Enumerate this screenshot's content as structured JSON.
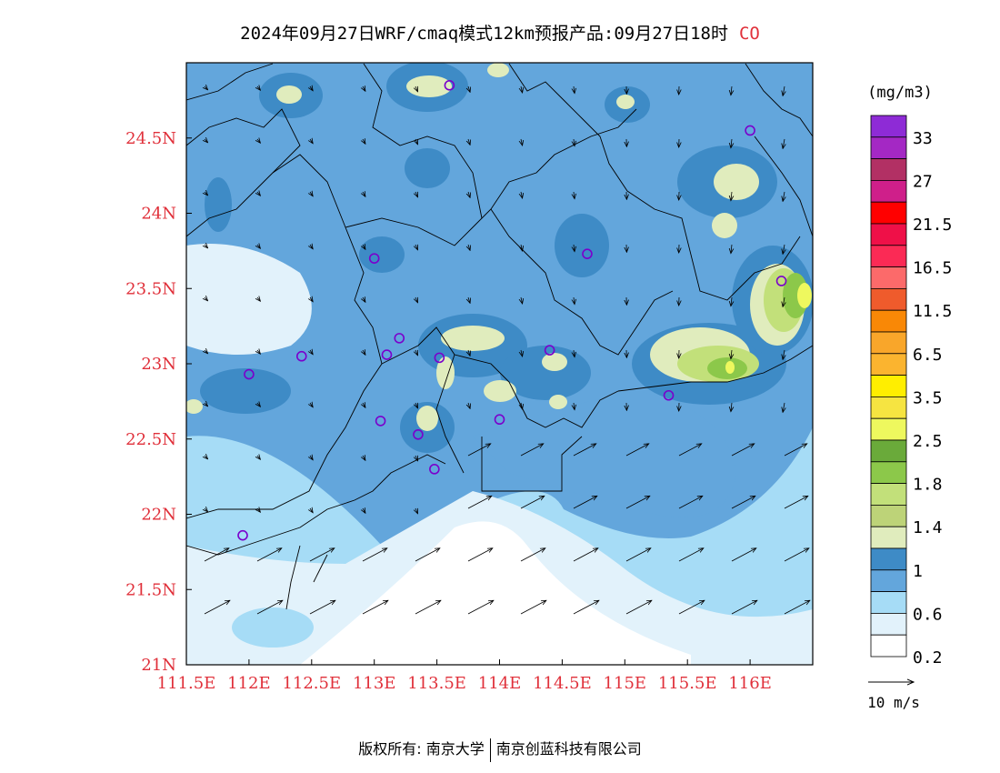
{
  "title": {
    "text": "2024年09月27日WRF/cmaq模式12km预报产品:09月27日18时",
    "species": "CO"
  },
  "colors": {
    "axis_label": "#e0303a",
    "frame": "#000000",
    "station_marker": "#7a00cc"
  },
  "map": {
    "lon_range": [
      111.5,
      116.5
    ],
    "lat_range": [
      21.0,
      25.0
    ],
    "x_ticks": [
      "111.5E",
      "112E",
      "112.5E",
      "113E",
      "113.5E",
      "114E",
      "114.5E",
      "115E",
      "115.5E",
      "116E"
    ],
    "y_ticks": [
      "24.5N",
      "24N",
      "23.5N",
      "23N",
      "22.5N",
      "22N",
      "21.5N",
      "21N"
    ],
    "field_variable": "CO concentration",
    "vector_variable": "wind"
  },
  "legend": {
    "unit": "(mg/m3)",
    "labels": [
      "33",
      "27",
      "21.5",
      "16.5",
      "11.5",
      "6.5",
      "3.5",
      "2.5",
      "1.8",
      "1.4",
      "1",
      "0.6",
      "0.2"
    ],
    "colors": [
      "#8e2bd6",
      "#a428c4",
      "#b23064",
      "#cf1f8a",
      "#ff0000",
      "#ef1048",
      "#fb2a55",
      "#fc6a6a",
      "#ef5b2c",
      "#f98806",
      "#f9a62a",
      "#fbb42f",
      "#ffee00",
      "#f6e441",
      "#eef85e",
      "#6aaa3a",
      "#8cc84a",
      "#c2e07a",
      "#bdd378",
      "#e0ecbd",
      "#3e8bc6",
      "#63a6dc",
      "#a6dcf6",
      "#e2f2fb",
      "#ffffff"
    ]
  },
  "wind_reference": {
    "label": "10 m/s"
  },
  "stations": [
    {
      "lon": 113.6,
      "lat": 24.85
    },
    {
      "lon": 116.0,
      "lat": 24.55
    },
    {
      "lon": 114.7,
      "lat": 23.73
    },
    {
      "lon": 113.0,
      "lat": 23.7
    },
    {
      "lon": 116.25,
      "lat": 23.55
    },
    {
      "lon": 113.2,
      "lat": 23.17
    },
    {
      "lon": 112.42,
      "lat": 23.05
    },
    {
      "lon": 113.1,
      "lat": 23.06
    },
    {
      "lon": 113.52,
      "lat": 23.04
    },
    {
      "lon": 114.4,
      "lat": 23.09
    },
    {
      "lon": 112.0,
      "lat": 22.93
    },
    {
      "lon": 115.35,
      "lat": 22.79
    },
    {
      "lon": 113.05,
      "lat": 22.62
    },
    {
      "lon": 114.0,
      "lat": 22.63
    },
    {
      "lon": 113.35,
      "lat": 22.53
    },
    {
      "lon": 113.48,
      "lat": 22.3
    },
    {
      "lon": 111.95,
      "lat": 21.86
    }
  ],
  "footer": {
    "left": "版权所有: 南京大学",
    "right": "南京创蓝科技有限公司"
  }
}
